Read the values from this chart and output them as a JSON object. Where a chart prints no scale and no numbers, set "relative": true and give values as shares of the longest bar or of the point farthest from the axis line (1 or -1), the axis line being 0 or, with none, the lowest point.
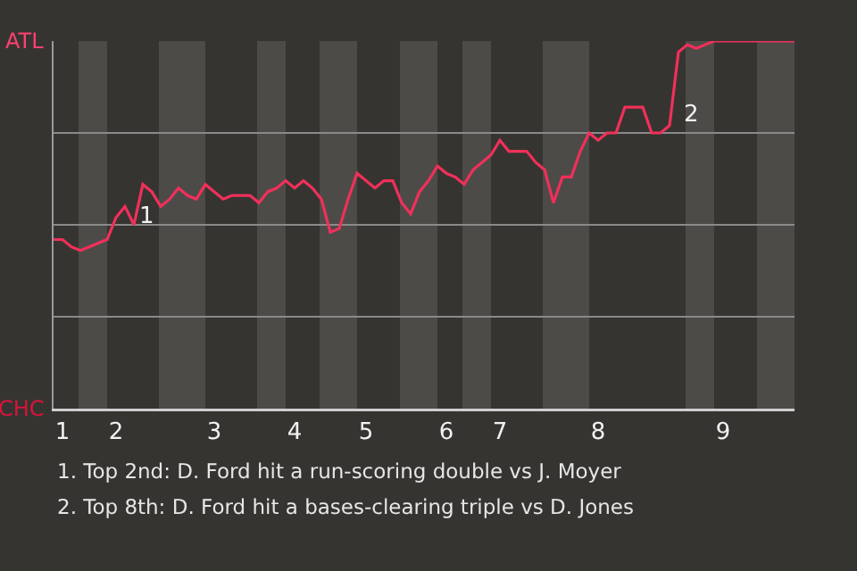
{
  "chart_data": {
    "type": "line",
    "relative": true,
    "categories": [
      null,
      "1",
      null,
      null,
      null,
      null,
      null,
      "2",
      null,
      null,
      null,
      null,
      null,
      null,
      null,
      null,
      null,
      null,
      "3",
      null,
      null,
      null,
      null,
      null,
      null,
      null,
      null,
      "4",
      null,
      null,
      null,
      null,
      null,
      null,
      null,
      "5",
      null,
      null,
      null,
      null,
      null,
      null,
      null,
      null,
      "6",
      null,
      null,
      null,
      null,
      null,
      "7",
      null,
      null,
      null,
      null,
      null,
      null,
      null,
      null,
      null,
      null,
      "8",
      null,
      null,
      null,
      null,
      null,
      null,
      null,
      null,
      null,
      null,
      null,
      null,
      null,
      "9",
      null,
      null,
      null,
      null,
      null,
      null,
      null,
      null
    ],
    "series": [
      {
        "color": "#f0305a",
        "values": [
          0.46,
          0.46,
          0.44,
          0.43,
          0.44,
          0.45,
          0.46,
          0.52,
          0.55,
          0.5,
          0.61,
          0.59,
          0.55,
          0.57,
          0.6,
          0.58,
          0.57,
          0.61,
          0.59,
          0.57,
          0.58,
          0.58,
          0.58,
          0.56,
          0.59,
          0.6,
          0.62,
          0.6,
          0.62,
          0.6,
          0.57,
          0.48,
          0.49,
          0.57,
          0.64,
          0.62,
          0.6,
          0.62,
          0.62,
          0.56,
          0.53,
          0.59,
          0.62,
          0.66,
          0.64,
          0.63,
          0.61,
          0.65,
          0.67,
          0.69,
          0.73,
          0.7,
          0.7,
          0.7,
          0.67,
          0.65,
          0.56,
          0.63,
          0.63,
          0.7,
          0.75,
          0.73,
          0.75,
          0.75,
          0.82,
          0.82,
          0.82,
          0.75,
          0.75,
          0.77,
          0.97,
          0.99,
          0.98,
          0.99,
          1,
          1,
          1,
          1,
          1,
          1,
          1,
          1,
          1,
          1
        ]
      }
    ],
    "grid": "y",
    "marker": "none",
    "line_style": "solid",
    "annotations": [
      "ATL",
      "CHC",
      "1",
      "2",
      "1. Top 2nd: D. Ford hit a run-scoring double vs J. Moyer",
      "2. Top 8th: D. Ford hit a bases-clearing triple vs D. Jones"
    ]
  }
}
